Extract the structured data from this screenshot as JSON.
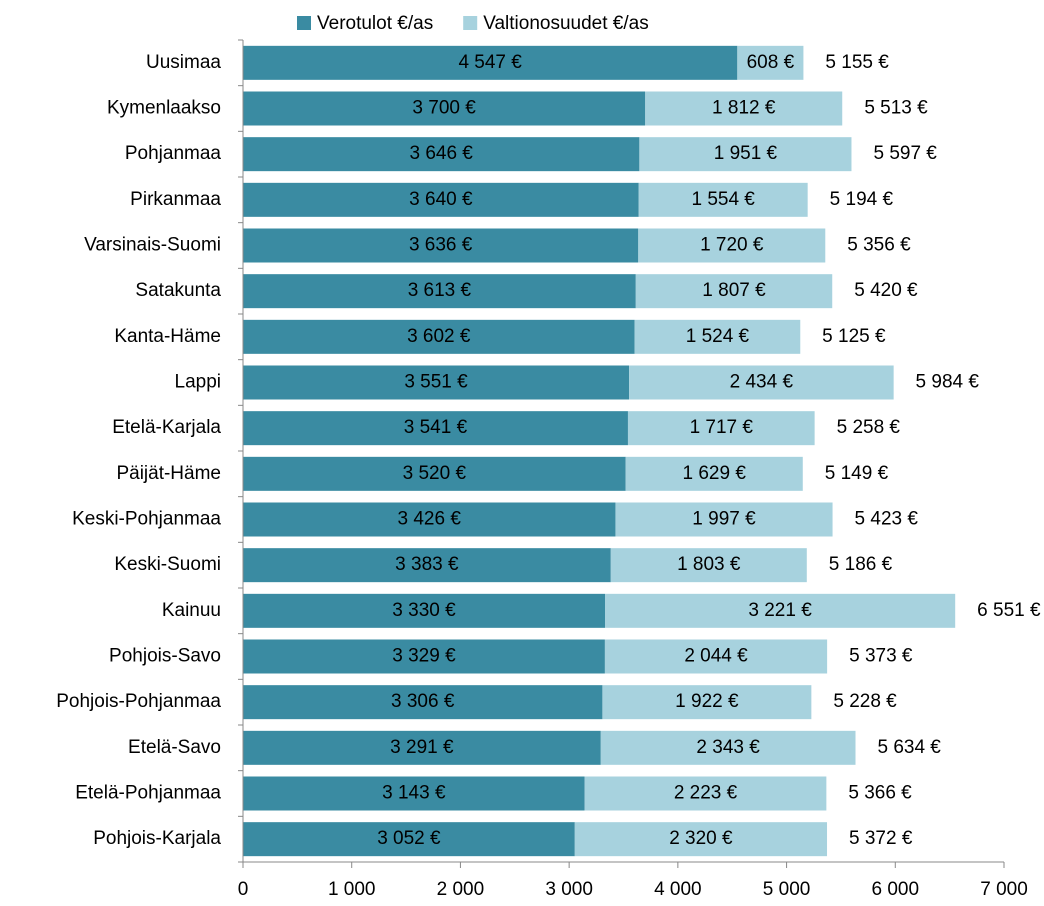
{
  "chart_data": {
    "type": "stacked_bar_horizontal",
    "categories": [
      "Uusimaa",
      "Kymenlaakso",
      "Pohjanmaa",
      "Pirkanmaa",
      "Varsinais-Suomi",
      "Satakunta",
      "Kanta-Häme",
      "Lappi",
      "Etelä-Karjala",
      "Päijät-Häme",
      "Keski-Pohjanmaa",
      "Keski-Suomi",
      "Kainuu",
      "Pohjois-Savo",
      "Pohjois-Pohjanmaa",
      "Etelä-Savo",
      "Etelä-Pohjanmaa",
      "Pohjois-Karjala"
    ],
    "series": [
      {
        "name": "Verotulot €/as",
        "color": "#3a8ba2",
        "values": [
          4547,
          3700,
          3646,
          3640,
          3636,
          3613,
          3602,
          3551,
          3541,
          3520,
          3426,
          3383,
          3330,
          3329,
          3306,
          3291,
          3143,
          3052
        ],
        "value_labels": [
          "4 547 €",
          "3 700 €",
          "3 646 €",
          "3 640 €",
          "3 636 €",
          "3 613 €",
          "3 602 €",
          "3 551 €",
          "3 541 €",
          "3 520 €",
          "3 426 €",
          "3 383 €",
          "3 330 €",
          "3 329 €",
          "3 306 €",
          "3 291 €",
          "3 143 €",
          "3 052 €"
        ]
      },
      {
        "name": "Valtionosuudet €/as",
        "color": "#a7d2de",
        "values": [
          608,
          1812,
          1951,
          1554,
          1720,
          1807,
          1524,
          2434,
          1717,
          1629,
          1997,
          1803,
          3221,
          2044,
          1922,
          2343,
          2223,
          2320
        ],
        "value_labels": [
          "608 €",
          "1 812 €",
          "1 951 €",
          "1 554 €",
          "1 720 €",
          "1 807 €",
          "1 524 €",
          "2 434 €",
          "1 717 €",
          "1 629 €",
          "1 997 €",
          "1 803 €",
          "3 221 €",
          "2 044 €",
          "1 922 €",
          "2 343 €",
          "2 223 €",
          "2 320 €"
        ]
      }
    ],
    "totals": [
      5155,
      5513,
      5597,
      5194,
      5356,
      5420,
      5125,
      5984,
      5258,
      5149,
      5423,
      5186,
      6551,
      5373,
      5228,
      5634,
      5366,
      5372
    ],
    "total_labels": [
      "5 155 €",
      "5 513 €",
      "5 597 €",
      "5 194 €",
      "5 356 €",
      "5 420 €",
      "5 125 €",
      "5 984 €",
      "5 258 €",
      "5 149 €",
      "5 423 €",
      "5 186 €",
      "6 551 €",
      "5 373 €",
      "5 228 €",
      "5 634 €",
      "5 366 €",
      "5 372 €"
    ],
    "xlim": [
      0,
      7000
    ],
    "xticks": [
      0,
      {
        "value": 1000,
        "label": "1 000"
      },
      {
        "value": 2000,
        "label": "2 000"
      },
      {
        "value": 3000,
        "label": "3 000"
      },
      {
        "value": 4000,
        "label": "4 000"
      },
      {
        "value": 5000,
        "label": "5 000"
      },
      {
        "value": 6000,
        "label": "6 000"
      },
      {
        "value": 7000,
        "label": "7 000"
      }
    ],
    "legend": "top",
    "grid": false
  }
}
